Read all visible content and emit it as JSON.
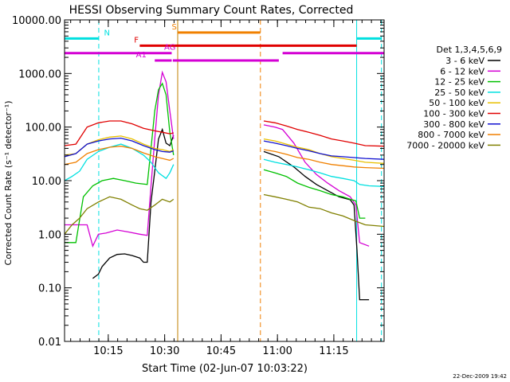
{
  "chart_data": {
    "type": "line",
    "title": "HESSI Observing Summary Count Rates, Corrected",
    "xlabel": "Start Time (02-Jun-07 10:03:22)",
    "ylabel": "Corrected Count Rate (s⁻¹ detector⁻¹)",
    "yscale": "log",
    "ylim": [
      0.01,
      10000
    ],
    "xlim_min": [
      0,
      85
    ],
    "x_unit": "minutes after 10:03:22",
    "x_ticks": [
      {
        "x": 11.63,
        "label": "10:15"
      },
      {
        "x": 26.63,
        "label": "10:30"
      },
      {
        "x": 41.63,
        "label": "10:45"
      },
      {
        "x": 56.63,
        "label": "11:00"
      },
      {
        "x": 71.63,
        "label": "11:15"
      },
      {
        "x": 86.63,
        "label": "11:30"
      }
    ],
    "y_ticks": [
      {
        "v": 0.01,
        "label": "0.01"
      },
      {
        "v": 0.1,
        "label": "0.10"
      },
      {
        "v": 1,
        "label": "1.00"
      },
      {
        "v": 10,
        "label": "10.00"
      },
      {
        "v": 100,
        "label": "100.00"
      },
      {
        "v": 1000,
        "label": "1000.00"
      },
      {
        "v": 10000,
        "label": "10000.00"
      }
    ],
    "legend_title": "Det 1,3,4,5,6,9",
    "legend_position": "right",
    "series": [
      {
        "name": "3 - 6 keV",
        "color": "#000000",
        "seg1": [
          [
            7.5,
            0.15
          ],
          [
            9,
            0.18
          ],
          [
            10,
            0.25
          ],
          [
            12,
            0.36
          ],
          [
            14,
            0.42
          ],
          [
            16,
            0.43
          ],
          [
            18,
            0.4
          ],
          [
            20,
            0.36
          ],
          [
            21,
            0.3
          ],
          [
            22,
            0.3
          ],
          [
            23,
            4
          ],
          [
            24,
            15
          ],
          [
            25,
            60
          ],
          [
            26,
            90
          ],
          [
            27,
            50
          ],
          [
            28,
            45
          ],
          [
            29,
            70
          ]
        ],
        "seg2": [
          [
            53,
            35
          ],
          [
            57,
            28
          ],
          [
            61,
            18
          ],
          [
            64,
            12
          ],
          [
            67,
            8.5
          ],
          [
            70,
            6.5
          ],
          [
            73,
            5.0
          ],
          [
            76,
            4.4
          ],
          [
            77,
            3.5
          ],
          [
            77.8,
            0.5
          ],
          [
            78.5,
            0.06
          ],
          [
            81,
            0.06
          ]
        ]
      },
      {
        "name": "6 - 12 keV",
        "color": "#d400d4",
        "seg1": [
          [
            0,
            1.5
          ],
          [
            6,
            1.5
          ],
          [
            7.5,
            0.6
          ],
          [
            9,
            1.0
          ],
          [
            11,
            1.05
          ],
          [
            14,
            1.2
          ],
          [
            17,
            1.1
          ],
          [
            20,
            1.0
          ],
          [
            22,
            0.95
          ],
          [
            23,
            8
          ],
          [
            24,
            60
          ],
          [
            25,
            400
          ],
          [
            26,
            1050
          ],
          [
            27,
            700
          ],
          [
            28,
            200
          ],
          [
            29,
            60
          ]
        ],
        "seg2": [
          [
            53,
            110
          ],
          [
            56,
            100
          ],
          [
            58,
            90
          ],
          [
            61,
            50
          ],
          [
            64,
            22
          ],
          [
            67,
            13
          ],
          [
            70,
            9
          ],
          [
            73,
            6.5
          ],
          [
            76,
            5
          ],
          [
            77.5,
            3.5
          ],
          [
            78.5,
            0.7
          ],
          [
            81,
            0.6
          ]
        ]
      },
      {
        "name": "12 - 25 keV",
        "color": "#00c000",
        "seg1": [
          [
            0,
            0.7
          ],
          [
            3,
            0.7
          ],
          [
            5,
            5
          ],
          [
            7.5,
            8
          ],
          [
            10,
            10
          ],
          [
            13,
            11
          ],
          [
            16,
            10
          ],
          [
            19,
            9
          ],
          [
            22,
            8.5
          ],
          [
            23,
            40
          ],
          [
            24,
            200
          ],
          [
            25,
            500
          ],
          [
            26,
            650
          ],
          [
            27,
            400
          ],
          [
            28,
            80
          ],
          [
            29,
            30
          ]
        ],
        "seg2": [
          [
            53,
            16
          ],
          [
            56,
            14
          ],
          [
            59,
            12
          ],
          [
            62,
            9
          ],
          [
            65,
            7.5
          ],
          [
            68,
            6.5
          ],
          [
            71,
            5.5
          ],
          [
            74,
            5
          ],
          [
            76,
            4.5
          ],
          [
            77.5,
            4.2
          ],
          [
            78.5,
            2
          ],
          [
            80,
            2
          ]
        ]
      },
      {
        "name": "25 - 50 keV",
        "color": "#00e0e0",
        "seg1": [
          [
            0,
            10
          ],
          [
            2,
            12
          ],
          [
            4,
            15
          ],
          [
            6,
            25
          ],
          [
            9,
            35
          ],
          [
            12,
            42
          ],
          [
            15,
            48
          ],
          [
            18,
            40
          ],
          [
            21,
            30
          ],
          [
            23,
            22
          ],
          [
            25,
            14
          ],
          [
            27,
            11
          ],
          [
            28,
            14
          ],
          [
            29,
            20
          ]
        ],
        "seg2": [
          [
            53,
            25
          ],
          [
            56,
            22
          ],
          [
            59,
            20
          ],
          [
            62,
            18
          ],
          [
            65,
            16
          ],
          [
            68,
            14
          ],
          [
            71,
            12
          ],
          [
            74,
            11
          ],
          [
            77,
            10
          ],
          [
            78.5,
            8.5
          ],
          [
            81,
            8
          ],
          [
            85,
            7.8
          ]
        ]
      },
      {
        "name": "50 - 100 keV",
        "color": "#e8c000",
        "seg1": [
          [
            0,
            30
          ],
          [
            3,
            32
          ],
          [
            6,
            48
          ],
          [
            9,
            58
          ],
          [
            12,
            65
          ],
          [
            15,
            68
          ],
          [
            18,
            60
          ],
          [
            21,
            48
          ],
          [
            24,
            40
          ],
          [
            26,
            38
          ],
          [
            28,
            35
          ],
          [
            29,
            38
          ]
        ],
        "seg2": [
          [
            53,
            60
          ],
          [
            56,
            55
          ],
          [
            59,
            48
          ],
          [
            62,
            42
          ],
          [
            65,
            38
          ],
          [
            68,
            32
          ],
          [
            71,
            28
          ],
          [
            74,
            26
          ],
          [
            77,
            24
          ],
          [
            80,
            22
          ],
          [
            85,
            21
          ]
        ]
      },
      {
        "name": "100 - 300 keV",
        "color": "#e00000",
        "seg1": [
          [
            0,
            45
          ],
          [
            3,
            48
          ],
          [
            6,
            100
          ],
          [
            9,
            120
          ],
          [
            12,
            130
          ],
          [
            15,
            130
          ],
          [
            18,
            115
          ],
          [
            21,
            95
          ],
          [
            24,
            85
          ],
          [
            26,
            80
          ],
          [
            28,
            75
          ],
          [
            29,
            78
          ]
        ],
        "seg2": [
          [
            53,
            130
          ],
          [
            56,
            120
          ],
          [
            59,
            105
          ],
          [
            62,
            90
          ],
          [
            65,
            80
          ],
          [
            68,
            70
          ],
          [
            71,
            60
          ],
          [
            74,
            55
          ],
          [
            77,
            50
          ],
          [
            80,
            45
          ],
          [
            85,
            44
          ]
        ]
      },
      {
        "name": "300 - 800 keV",
        "color": "#1010d0",
        "seg1": [
          [
            0,
            28
          ],
          [
            3,
            32
          ],
          [
            6,
            48
          ],
          [
            9,
            55
          ],
          [
            12,
            60
          ],
          [
            15,
            62
          ],
          [
            18,
            55
          ],
          [
            21,
            45
          ],
          [
            24,
            38
          ],
          [
            26,
            35
          ],
          [
            28,
            34
          ],
          [
            29,
            36
          ]
        ],
        "seg2": [
          [
            53,
            55
          ],
          [
            56,
            50
          ],
          [
            59,
            45
          ],
          [
            62,
            40
          ],
          [
            65,
            36
          ],
          [
            68,
            32
          ],
          [
            71,
            29
          ],
          [
            74,
            28
          ],
          [
            77,
            27
          ],
          [
            80,
            26
          ],
          [
            85,
            25
          ]
        ]
      },
      {
        "name": "800 - 7000 keV",
        "color": "#f08000",
        "seg1": [
          [
            0,
            20
          ],
          [
            3,
            22
          ],
          [
            6,
            32
          ],
          [
            9,
            38
          ],
          [
            12,
            42
          ],
          [
            15,
            44
          ],
          [
            18,
            40
          ],
          [
            21,
            33
          ],
          [
            24,
            28
          ],
          [
            26,
            26
          ],
          [
            28,
            24
          ],
          [
            29,
            26
          ]
        ],
        "seg2": [
          [
            53,
            38
          ],
          [
            56,
            35
          ],
          [
            59,
            31
          ],
          [
            62,
            27
          ],
          [
            65,
            25
          ],
          [
            68,
            22
          ],
          [
            71,
            20
          ],
          [
            74,
            19
          ],
          [
            77,
            18
          ],
          [
            80,
            17.5
          ],
          [
            85,
            17
          ]
        ]
      },
      {
        "name": "7000 - 20000 keV",
        "color": "#808000",
        "seg1": [
          [
            0,
            1.0
          ],
          [
            2,
            1.5
          ],
          [
            4,
            2.0
          ],
          [
            6,
            3.0
          ],
          [
            9,
            4.0
          ],
          [
            12,
            5.0
          ],
          [
            15,
            4.5
          ],
          [
            18,
            3.5
          ],
          [
            20,
            3.0
          ],
          [
            22,
            2.8
          ],
          [
            24,
            3.5
          ],
          [
            26,
            4.5
          ],
          [
            28,
            4.0
          ],
          [
            29,
            4.5
          ]
        ],
        "seg2": [
          [
            53,
            5.5
          ],
          [
            56,
            5.0
          ],
          [
            59,
            4.5
          ],
          [
            62,
            4.0
          ],
          [
            65,
            3.2
          ],
          [
            68,
            3.0
          ],
          [
            71,
            2.5
          ],
          [
            74,
            2.2
          ],
          [
            77,
            1.8
          ],
          [
            80,
            1.5
          ],
          [
            85,
            1.4
          ]
        ]
      }
    ],
    "annotations": {
      "vlines": [
        {
          "x": 0,
          "color": "#00e0e0",
          "dash": "solid"
        },
        {
          "x": 9.1,
          "color": "#00e0e0",
          "dash": "dashed"
        },
        {
          "x": 30.1,
          "color": "#c08000",
          "dash": "solid"
        },
        {
          "x": 52.1,
          "color": "#f08000",
          "dash": "dashed"
        },
        {
          "x": 77.7,
          "color": "#00e0e0",
          "dash": "solid"
        },
        {
          "x": 84.3,
          "color": "#00e0e0",
          "dash": "dashed"
        }
      ],
      "bars": [
        {
          "label": "N",
          "color": "#00e0e0",
          "y": 4500,
          "segs": [
            [
              0,
              9.1
            ],
            [
              77.7,
              84.3
            ]
          ],
          "label_x": 10.5
        },
        {
          "label": "S",
          "color": "#f08000",
          "y": 5800,
          "segs": [
            [
              30.1,
              52.1
            ]
          ],
          "label_x": 28.5
        },
        {
          "label": "F",
          "color": "#e00000",
          "y": 3300,
          "segs": [
            [
              20,
              77.7
            ]
          ],
          "label_x": 18.5
        },
        {
          "label": "AG",
          "color": "#d400d4",
          "y": 2400,
          "segs": [
            [
              0,
              28.5
            ],
            [
              58,
              85
            ]
          ],
          "label_x": 26.5
        },
        {
          "label": "A1",
          "color": "#d400d4",
          "y": 1750,
          "segs": [
            [
              24,
              28.5
            ],
            [
              28.8,
              57
            ]
          ],
          "label_x": 19
        }
      ]
    },
    "footer": "22-Dec-2009 19:42"
  }
}
